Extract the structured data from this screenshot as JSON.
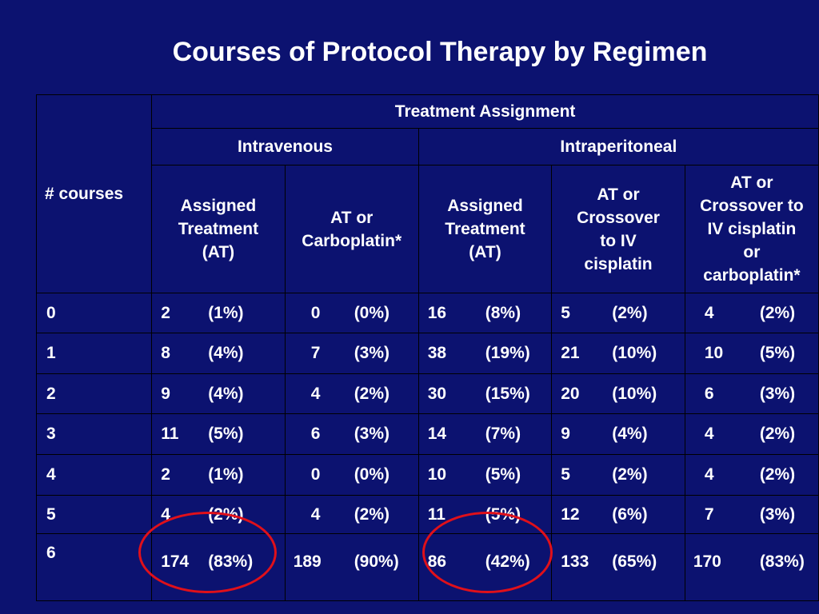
{
  "title": "Courses of Protocol Therapy by Regimen",
  "colors": {
    "background": "#0c1270",
    "text": "#ffffff",
    "highlight_circle": "#e0101a"
  },
  "table": {
    "row_header": "# courses",
    "treatment_assignment": "Treatment Assignment",
    "groups": [
      "Intravenous",
      "Intraperitoneal"
    ],
    "columns": [
      [
        "Assigned",
        "Treatment",
        "(AT)"
      ],
      [
        "AT or",
        "Carboplatin*"
      ],
      [
        "Assigned",
        "Treatment",
        "(AT)"
      ],
      [
        "AT or",
        "Crossover",
        "to IV",
        "cisplatin"
      ],
      [
        "AT or",
        "Crossover to",
        "IV cisplatin",
        "or",
        "carboplatin*"
      ]
    ],
    "rows": [
      {
        "courses": "0",
        "values": [
          [
            "2",
            "(1%)"
          ],
          [
            "0",
            "(0%)"
          ],
          [
            "16",
            "(8%)"
          ],
          [
            "5",
            "(2%)"
          ],
          [
            "4",
            "(2%)"
          ]
        ]
      },
      {
        "courses": "1",
        "values": [
          [
            "8",
            "(4%)"
          ],
          [
            "7",
            "(3%)"
          ],
          [
            "38",
            "(19%)"
          ],
          [
            "21",
            "(10%)"
          ],
          [
            "10",
            "(5%)"
          ]
        ]
      },
      {
        "courses": "2",
        "values": [
          [
            "9",
            "(4%)"
          ],
          [
            "4",
            "(2%)"
          ],
          [
            "30",
            "(15%)"
          ],
          [
            "20",
            "(10%)"
          ],
          [
            "6",
            "(3%)"
          ]
        ]
      },
      {
        "courses": "3",
        "values": [
          [
            "11",
            "(5%)"
          ],
          [
            "6",
            "(3%)"
          ],
          [
            "14",
            "(7%)"
          ],
          [
            "9",
            "(4%)"
          ],
          [
            "4",
            "(2%)"
          ]
        ]
      },
      {
        "courses": "4",
        "values": [
          [
            "2",
            "(1%)"
          ],
          [
            "0",
            "(0%)"
          ],
          [
            "10",
            "(5%)"
          ],
          [
            "5",
            "(2%)"
          ],
          [
            "4",
            "(2%)"
          ]
        ]
      },
      {
        "courses": "5",
        "values": [
          [
            "4",
            "(2%)"
          ],
          [
            "4",
            "(2%)"
          ],
          [
            "11",
            "(5%)"
          ],
          [
            "12",
            "(6%)"
          ],
          [
            "7",
            "(3%)"
          ]
        ]
      },
      {
        "courses": "6",
        "values": [
          [
            "174",
            "(83%)"
          ],
          [
            "189",
            "(90%)"
          ],
          [
            "86",
            "(42%)"
          ],
          [
            "133",
            "(65%)"
          ],
          [
            "170",
            "(83%)"
          ]
        ]
      }
    ]
  }
}
